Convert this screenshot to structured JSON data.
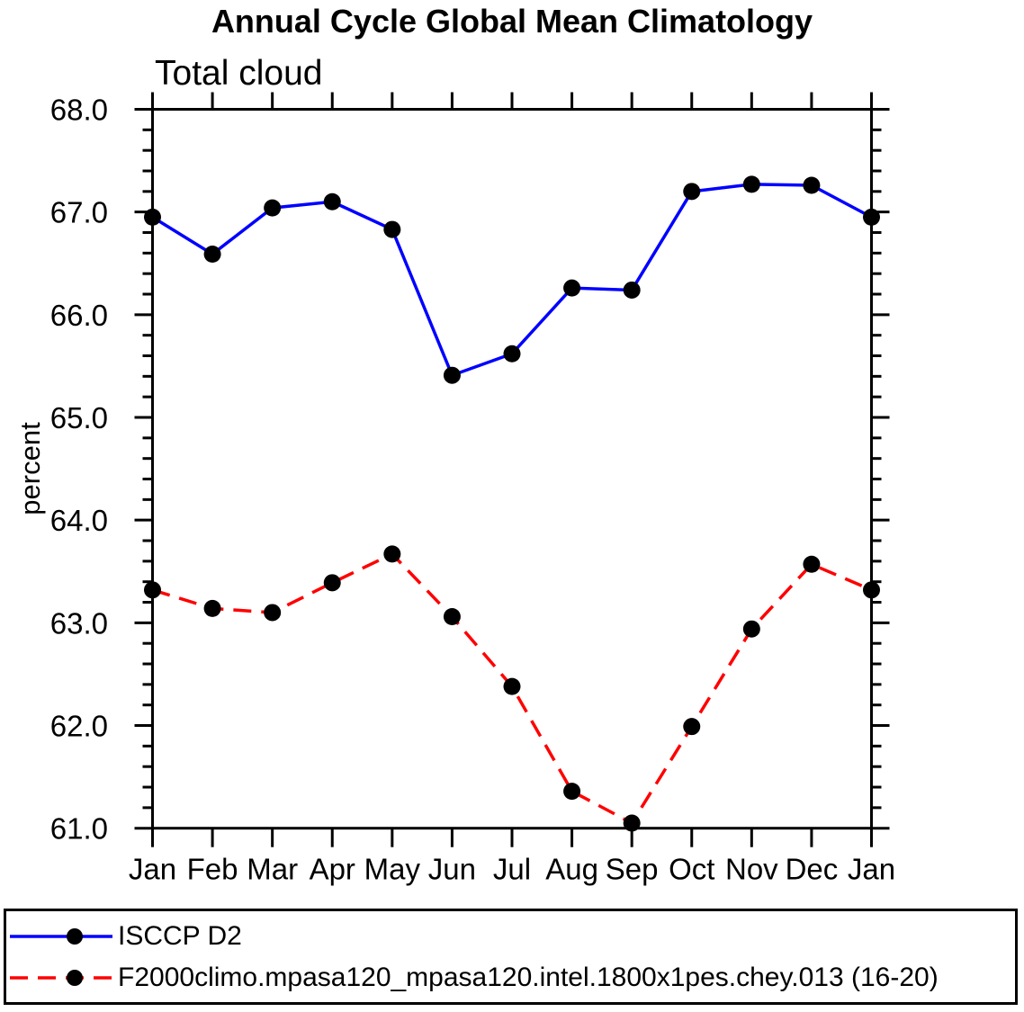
{
  "chart_data": {
    "type": "line",
    "title": "Annual Cycle Global Mean Climatology",
    "subtitle": "Total cloud",
    "ylabel": "percent",
    "categories": [
      "Jan",
      "Feb",
      "Mar",
      "Apr",
      "May",
      "Jun",
      "Jul",
      "Aug",
      "Sep",
      "Oct",
      "Nov",
      "Dec",
      "Jan"
    ],
    "ylim": [
      61.0,
      68.0
    ],
    "ytick_major": 1.0,
    "ytick_minor": 0.2,
    "ytick_labels": [
      "61.0",
      "62.0",
      "63.0",
      "64.0",
      "65.0",
      "66.0",
      "67.0",
      "68.0"
    ],
    "grid": false,
    "legend_position": "bottom",
    "axis_color": "#000000",
    "marker": "filled-circle",
    "marker_color": "#000000",
    "series": [
      {
        "name": "ISCCP D2",
        "color": "#0000ff",
        "style": "solid",
        "values": [
          66.95,
          66.59,
          67.04,
          67.1,
          66.83,
          65.41,
          65.62,
          66.26,
          66.24,
          67.2,
          67.27,
          67.26,
          66.95
        ]
      },
      {
        "name": "F2000climo.mpasa120_mpasa120.intel.1800x1pes.chey.013 (16-20)",
        "color": "#ff0000",
        "style": "dashed",
        "values": [
          63.32,
          63.14,
          63.1,
          63.39,
          63.67,
          63.06,
          62.38,
          61.36,
          61.05,
          61.99,
          62.94,
          63.57,
          63.32
        ]
      }
    ]
  }
}
